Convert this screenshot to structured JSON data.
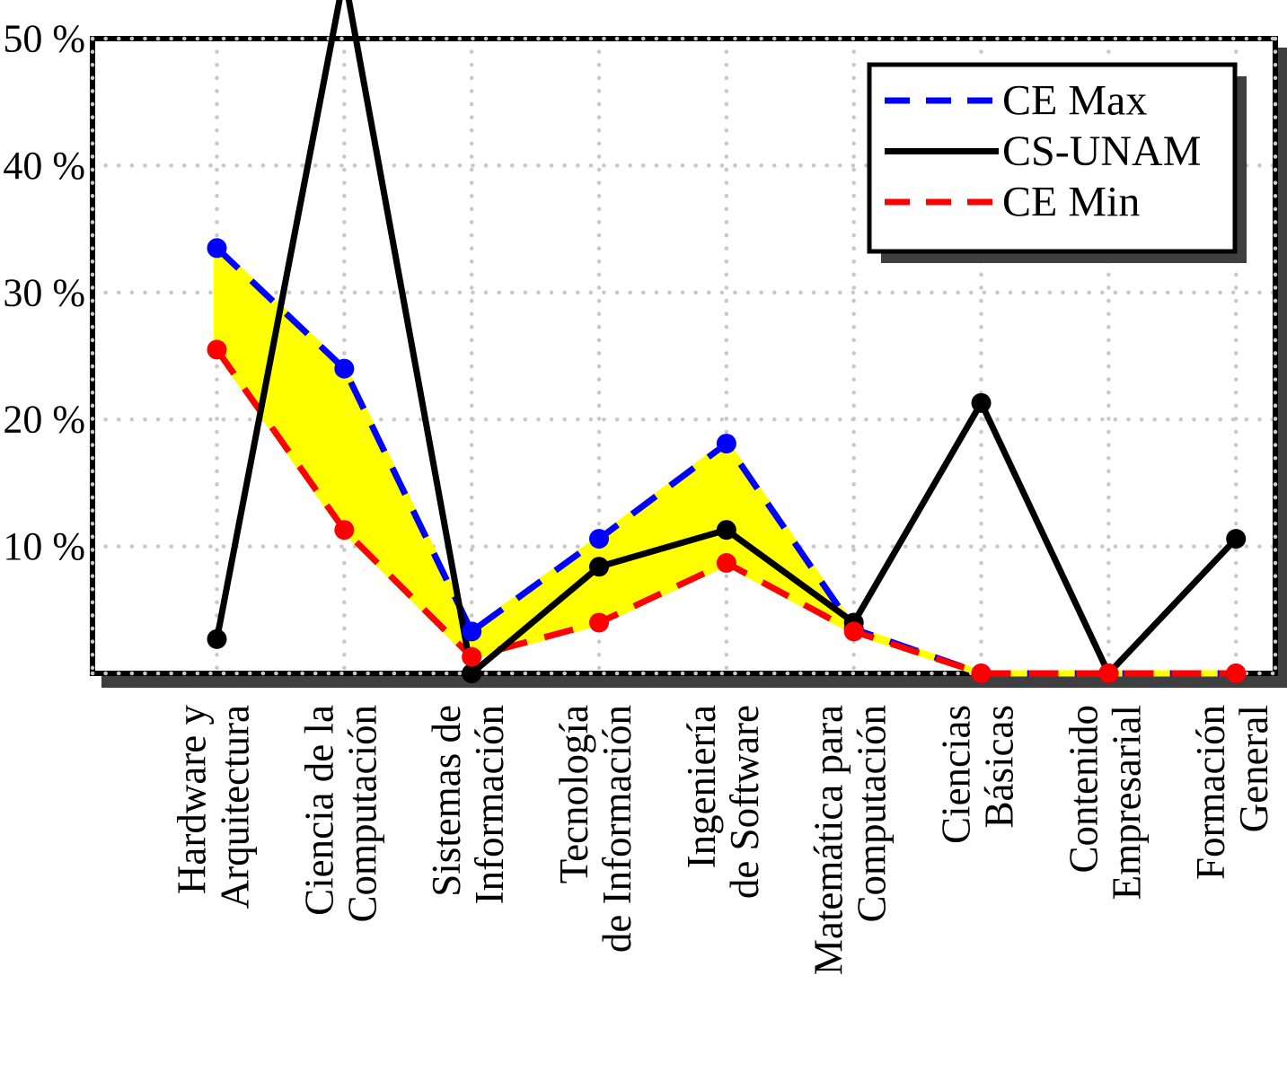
{
  "chart_data": {
    "type": "line",
    "title": "",
    "categories": [
      [
        "Hardware y",
        "Arquitectura"
      ],
      [
        "Ciencia de la",
        "Computación"
      ],
      [
        "Sistemas de",
        "Información"
      ],
      [
        "Tecnología",
        "de Información"
      ],
      [
        "Ingeniería",
        "de Software"
      ],
      [
        "Matemática para",
        "Computación"
      ],
      [
        "Ciencias",
        "Básicas"
      ],
      [
        "Contenido",
        "Empresarial"
      ],
      [
        "Formación",
        "General"
      ]
    ],
    "series": [
      {
        "name": "CE Max",
        "color": "#0000ff",
        "style": "dashed",
        "values": [
          33.5,
          24,
          3.3,
          10.6,
          18.1,
          3.5,
          0,
          0,
          0
        ]
      },
      {
        "name": "CS-UNAM",
        "color": "#000000",
        "style": "solid",
        "values": [
          2.7,
          55,
          0,
          8.4,
          11.3,
          4,
          21.3,
          0,
          10.6
        ]
      },
      {
        "name": "CE Min",
        "color": "#ff0000",
        "style": "dashed",
        "values": [
          25.5,
          11.3,
          1.3,
          4,
          8.7,
          3.3,
          0,
          0,
          0
        ]
      }
    ],
    "fill_between": {
      "upper": "CE Max",
      "lower": "CE Min",
      "color": "#ffff00"
    },
    "ylim": [
      0,
      50
    ],
    "yticks": [
      10,
      20,
      30,
      40,
      50
    ],
    "ytick_suffix": " %",
    "grid": "dotted",
    "markers": "filled-circle",
    "legend": {
      "position": "top-right",
      "entries": [
        "CE Max",
        "CS-UNAM",
        "CE Min"
      ]
    },
    "clipped_note": "CS-UNAM at 'Ciencia de la Computación' rises above the 50 % frame (peak clipped at image top)"
  },
  "colors": {
    "background": "#ffffff",
    "frame": "#000000",
    "grid_dots": "#c8c8c8",
    "shadow": "#3f3f3f",
    "band_fill": "#ffff00",
    "ce_max": "#0000ff",
    "cs_unam": "#000000",
    "ce_min": "#ff0000"
  }
}
